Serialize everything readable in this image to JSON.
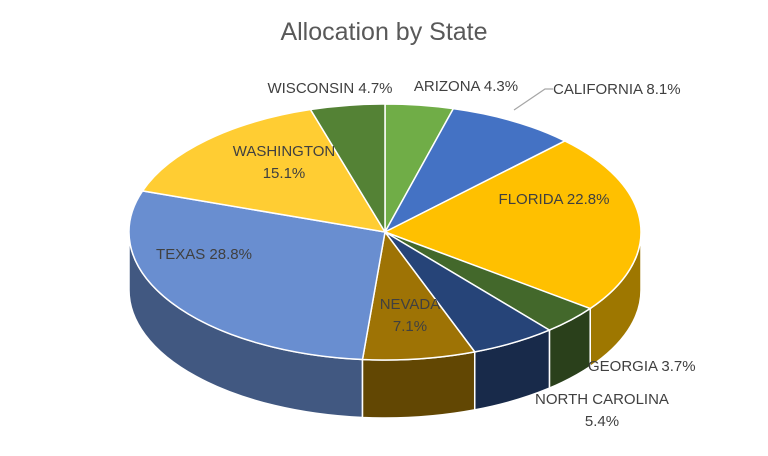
{
  "chart_data": {
    "type": "pie",
    "title": "Allocation by State",
    "unit": "%",
    "slices": [
      {
        "name": "ARIZONA",
        "value": 4.3,
        "color": "#70AD47",
        "label_lines": [
          "ARIZONA 4.3%"
        ]
      },
      {
        "name": "CALIFORNIA",
        "value": 8.1,
        "color": "#4472C4",
        "label_lines": [
          "CALIFORNIA 8.1%"
        ]
      },
      {
        "name": "FLORIDA",
        "value": 22.8,
        "color": "#FFC000",
        "label_lines": [
          "FLORIDA 22.8%"
        ]
      },
      {
        "name": "GEORGIA",
        "value": 3.7,
        "color": "#43682B",
        "label_lines": [
          "GEORGIA 3.7%"
        ]
      },
      {
        "name": "NORTH CAROLINA",
        "value": 5.4,
        "color": "#264478",
        "label_lines": [
          "NORTH CAROLINA",
          "5.4%"
        ]
      },
      {
        "name": "NEVADA",
        "value": 7.1,
        "color": "#9E7305",
        "label_lines": [
          "NEVADA",
          "7.1%"
        ]
      },
      {
        "name": "TEXAS",
        "value": 28.8,
        "color": "#698ED0",
        "label_lines": [
          "TEXAS 28.8%"
        ]
      },
      {
        "name": "WASHINGTON",
        "value": 15.1,
        "color": "#FFCD33",
        "label_lines": [
          "WASHINGTON",
          "15.1%"
        ]
      },
      {
        "name": "WISCONSIN",
        "value": 4.7,
        "color": "#548235",
        "label_lines": [
          "WISCONSIN 4.7%"
        ]
      }
    ]
  }
}
